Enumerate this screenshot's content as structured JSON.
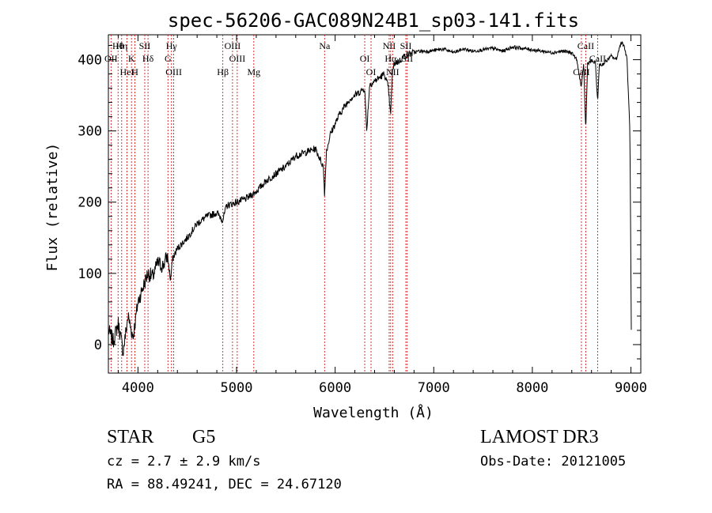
{
  "chart_data": {
    "type": "line",
    "title": "spec-56206-GAC089N24B1_sp03-141.fits",
    "xlabel": "Wavelength (Å)",
    "ylabel": "Flux (relative)",
    "xlim": [
      3700,
      9100
    ],
    "ylim": [
      -40,
      435
    ],
    "xticks": [
      4000,
      5000,
      6000,
      7000,
      8000,
      9000
    ],
    "yticks": [
      0,
      100,
      200,
      300,
      400
    ],
    "xtick_labels": [
      "4000",
      "5000",
      "6000",
      "7000",
      "8000",
      "9000"
    ],
    "ytick_labels": [
      "0",
      "100",
      "200",
      "300",
      "400"
    ],
    "series": [
      {
        "name": "flux",
        "x": [
          3700,
          3750,
          3800,
          3850,
          3900,
          3950,
          4000,
          4050,
          4100,
          4150,
          4200,
          4250,
          4300,
          4330,
          4350,
          4400,
          4500,
          4600,
          4700,
          4800,
          4860,
          4900,
          5000,
          5100,
          5200,
          5300,
          5400,
          5500,
          5600,
          5700,
          5800,
          5880,
          5893,
          5910,
          5950,
          6000,
          6050,
          6100,
          6150,
          6200,
          6250,
          6300,
          6320,
          6350,
          6400,
          6450,
          6500,
          6540,
          6563,
          6580,
          6600,
          6650,
          6700,
          6750,
          6800,
          6850,
          6900,
          6950,
          7000,
          7100,
          7200,
          7300,
          7400,
          7500,
          7600,
          7700,
          7800,
          7900,
          8000,
          8100,
          8200,
          8300,
          8400,
          8450,
          8498,
          8520,
          8542,
          8560,
          8600,
          8640,
          8662,
          8680,
          8700,
          8750,
          8800,
          8850,
          8900,
          8930,
          8960,
          8990,
          9000,
          9005
        ],
        "y": [
          20,
          5,
          30,
          -10,
          40,
          10,
          60,
          80,
          100,
          95,
          115,
          110,
          125,
          90,
          120,
          135,
          150,
          170,
          180,
          185,
          175,
          195,
          200,
          205,
          215,
          230,
          240,
          250,
          265,
          270,
          275,
          250,
          210,
          270,
          295,
          310,
          325,
          335,
          345,
          350,
          355,
          360,
          300,
          365,
          370,
          375,
          380,
          360,
          320,
          380,
          395,
          398,
          405,
          408,
          410,
          412,
          412,
          412,
          413,
          415,
          410,
          415,
          412,
          414,
          416,
          412,
          418,
          416,
          414,
          412,
          410,
          412,
          410,
          400,
          360,
          395,
          300,
          395,
          398,
          395,
          340,
          395,
          392,
          398,
          405,
          400,
          425,
          420,
          400,
          300,
          100,
          0
        ]
      }
    ],
    "lines": [
      {
        "label": "Hθ",
        "x": 3798
      },
      {
        "label": "OII",
        "x": 3727
      },
      {
        "label": "HeI",
        "x": 3889
      },
      {
        "label": "Hη",
        "x": 3835
      },
      {
        "label": "K",
        "x": 3934
      },
      {
        "label": "H",
        "x": 3969
      },
      {
        "label": "SII",
        "x": 4069
      },
      {
        "label": "Hδ",
        "x": 4102
      },
      {
        "label": "OIII",
        "x": 4363
      },
      {
        "label": "Hγ",
        "x": 4340
      },
      {
        "label": "G",
        "x": 4304
      },
      {
        "label": "Hβ",
        "x": 4861
      },
      {
        "label": "OIII",
        "x": 4959
      },
      {
        "label": "OIII",
        "x": 5007
      },
      {
        "label": "Mg",
        "x": 5175
      },
      {
        "label": "Na",
        "x": 5893
      },
      {
        "label": "OI",
        "x": 6300
      },
      {
        "label": "OI",
        "x": 6364
      },
      {
        "label": "NII",
        "x": 6548
      },
      {
        "label": "Hα",
        "x": 6563
      },
      {
        "label": "NII",
        "x": 6583
      },
      {
        "label": "SII",
        "x": 6717
      },
      {
        "label": "SII",
        "x": 6731
      },
      {
        "label": "CaII",
        "x": 8498
      },
      {
        "label": "CaII",
        "x": 8542
      },
      {
        "label": "CaII",
        "x": 8662
      }
    ],
    "grid": false,
    "legend": "none"
  },
  "footer": {
    "object_type": "STAR",
    "subclass": "G5",
    "survey": "LAMOST DR3",
    "redshift": "cz = 2.7 ± 2.9 km/s",
    "obs_date": "Obs-Date: 20121005",
    "coords": "RA =  88.49241, DEC =  24.67120"
  },
  "colors": {
    "spectrum": "#000000",
    "line_markers": "#cc0000",
    "background": "#ffffff"
  }
}
